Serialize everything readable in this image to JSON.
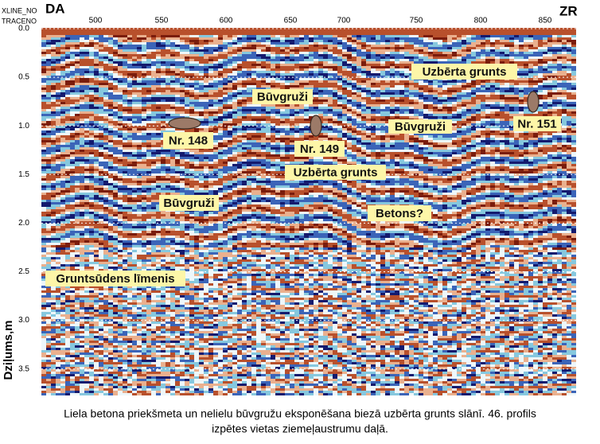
{
  "header": {
    "xline": "XLINE_NO",
    "trace": "TRACENO",
    "left": "DA",
    "right": "ZR"
  },
  "axes": {
    "x_ticks": [
      "500",
      "550",
      "600",
      "650",
      "700",
      "750",
      "800",
      "850"
    ],
    "y_ticks": [
      "0.0",
      "0.5",
      "1.0",
      "1.5",
      "2.0",
      "2.5",
      "3.0",
      "3.5"
    ],
    "y_title": "Dziļums,m"
  },
  "annotations": [
    {
      "label": "Uzbērta grunts"
    },
    {
      "label": "Būvgruži"
    },
    {
      "label": "Nr. 148"
    },
    {
      "label": "Būvgruži"
    },
    {
      "label": "Nr. 149"
    },
    {
      "label": "Nr. 151"
    },
    {
      "label": "Uzbērta grunts"
    },
    {
      "label": "Būvgruži"
    },
    {
      "label": "Betons?"
    },
    {
      "label": "Gruntsūdens līmenis"
    }
  ],
  "caption": [
    "Liela betona priekšmeta un nelielu būvgružu eksponēšana biezā uzbērta grunts slānī. 46. profils",
    "izpētes vietas ziemeļaustrumu daļā."
  ]
}
